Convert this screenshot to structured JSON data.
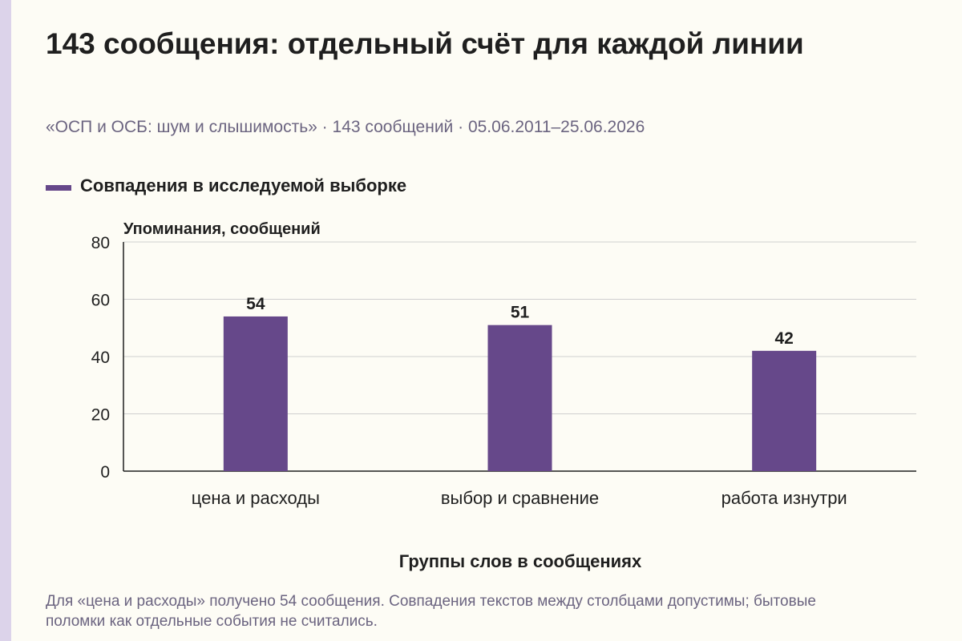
{
  "title": "143 сообщения: отдельный счёт для каждой линии",
  "subtitle": "«ОСП и ОСБ: шум и слышимость» · 143 сообщений · 05.06.2011–25.06.2026",
  "footnote": "Для «цена и расходы» получено 54 сообщения. Совпадения текстов между столбцами допустимы; бытовые поломки как отдельные события не считались.",
  "colors": {
    "bar": "#66488a",
    "accent_strip": "#dcd3ea",
    "background": "#fdfcf5"
  },
  "chart_data": {
    "type": "bar",
    "categories": [
      "цена и расходы",
      "выбор и сравнение",
      "работа изнутри"
    ],
    "series": [
      {
        "name": "Совпадения в исследуемой выборке",
        "values": [
          54,
          51,
          42
        ]
      }
    ],
    "data_labels": [
      "54",
      "51",
      "42"
    ],
    "ylabel": "Упоминания, сообщений",
    "xlabel": "Группы слов в сообщениях",
    "ylim": [
      0,
      80
    ],
    "yticks": [
      0,
      20,
      40,
      60,
      80
    ],
    "grid": true,
    "legend": "top-left"
  }
}
